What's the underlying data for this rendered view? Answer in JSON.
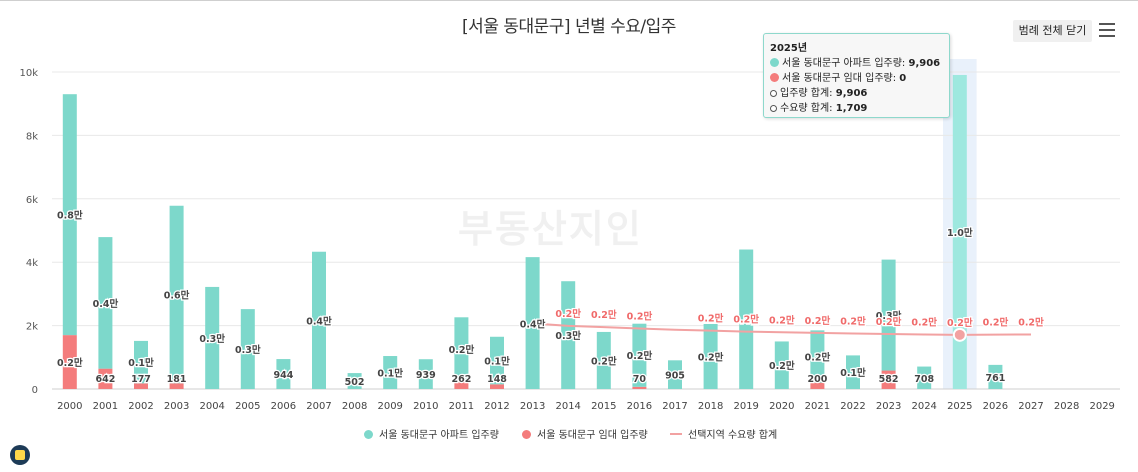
{
  "title": "[서울 동대문구] 년별 수요/입주",
  "legend_toggle_label": "범례 전체 닫기",
  "watermark": "부동산지인",
  "colors": {
    "apartment": "#7dd8cb",
    "rental": "#f47c7c",
    "demand": "#f2a2a2",
    "highlight": "#e9f1fb",
    "grid": "#e8e8e8"
  },
  "tooltip": {
    "year": "2025년",
    "apartment_label": "서울 동대문구 아파트 입주량:",
    "apartment_value": "9,906",
    "rental_label": "서울 동대문구 임대 입주량:",
    "rental_value": "0",
    "total_label": "입주량 합계:",
    "total_value": "9,906",
    "demand_label": "수요량 합계:",
    "demand_value": "1,709"
  },
  "legend": {
    "apartment": "서울 동대문구 아파트 입주량",
    "rental": "서울 동대문구 임대 입주량",
    "demand": "선택지역 수요량 합계"
  },
  "chart_data": {
    "type": "bar",
    "title": "[서울 동대문구] 년별 수요/입주",
    "stacked": true,
    "categories": [
      "2000",
      "2001",
      "2002",
      "2003",
      "2004",
      "2005",
      "2006",
      "2007",
      "2008",
      "2009",
      "2010",
      "2011",
      "2012",
      "2013",
      "2014",
      "2015",
      "2016",
      "2017",
      "2018",
      "2019",
      "2020",
      "2021",
      "2022",
      "2023",
      "2024",
      "2025",
      "2026",
      "2027",
      "2028",
      "2029"
    ],
    "y_ticks": [
      "0",
      "2k",
      "4k",
      "6k",
      "8k",
      "10k"
    ],
    "ylim": [
      0,
      10000
    ],
    "highlight_category": "2025",
    "series": [
      {
        "name": "서울 동대문구 아파트 입주량",
        "type": "bar",
        "values": [
          7600,
          4150,
          1340,
          5600,
          3220,
          2520,
          944,
          4330,
          502,
          1040,
          939,
          2000,
          1500,
          4160,
          3400,
          1800,
          1990,
          905,
          2050,
          4400,
          1500,
          1650,
          1060,
          3500,
          708,
          9906,
          761,
          0,
          0,
          0
        ]
      },
      {
        "name": "서울 동대문구 임대 입주량",
        "type": "bar",
        "values": [
          1700,
          642,
          177,
          181,
          0,
          0,
          0,
          0,
          0,
          0,
          0,
          262,
          148,
          0,
          0,
          0,
          70,
          0,
          0,
          0,
          0,
          200,
          0,
          582,
          0,
          0,
          0,
          0,
          0,
          0
        ]
      },
      {
        "name": "선택지역 수요량 합계",
        "type": "line",
        "start_index": 13,
        "values": [
          null,
          null,
          null,
          null,
          null,
          null,
          null,
          null,
          null,
          null,
          null,
          null,
          null,
          2070,
          1990,
          1950,
          1910,
          1870,
          1840,
          1810,
          1790,
          1770,
          1750,
          1735,
          1720,
          1709,
          1715,
          1720,
          null,
          null
        ]
      }
    ],
    "apartment_labels": [
      "0.8만",
      "0.4만",
      "0.1만",
      "0.6만",
      "0.3만",
      "0.3만",
      "944",
      "0.4만",
      "502",
      "0.1만",
      "939",
      "0.2만",
      "0.1만",
      "0.4만",
      "0.3만",
      "0.2만",
      "0.2만",
      "905",
      "0.2만",
      "0.4만",
      "0.2만",
      "0.2만",
      "0.1만",
      "0.3만",
      "708",
      "1.0만",
      "761",
      "",
      "",
      ""
    ],
    "rental_labels": [
      "0.2만",
      "642",
      "177",
      "181",
      "",
      "",
      "",
      "",
      "",
      "",
      "",
      "262",
      "148",
      "",
      "",
      "",
      "70",
      "",
      "",
      "",
      "",
      "200",
      "",
      "582",
      "",
      "",
      "",
      "",
      "",
      ""
    ],
    "demand_labels": [
      "",
      "",
      "",
      "",
      "",
      "",
      "",
      "",
      "",
      "",
      "",
      "",
      "",
      "",
      "0.2만",
      "0.2만",
      "0.2만",
      "",
      "0.2만",
      "0.2만",
      "0.2만",
      "0.2만",
      "0.2만",
      "0.2만",
      "0.2만",
      "0.2만",
      "0.2만",
      "0.2만",
      "",
      ""
    ]
  }
}
